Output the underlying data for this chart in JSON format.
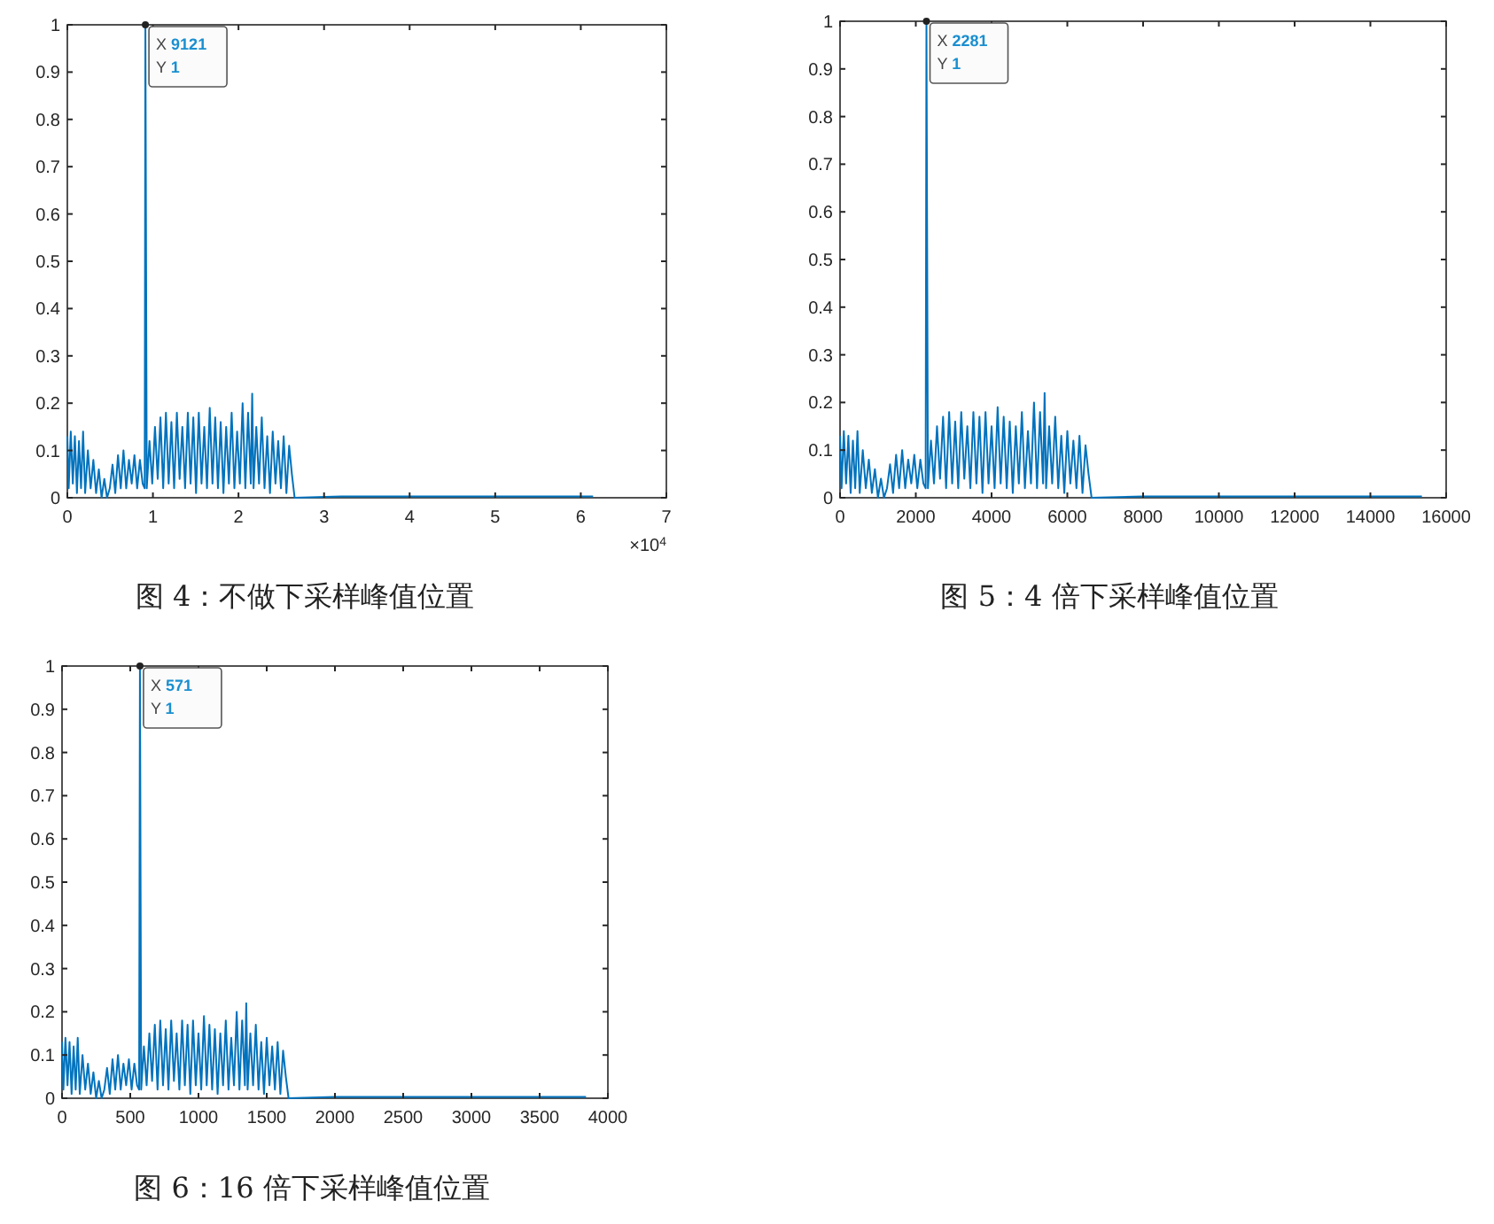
{
  "chart_data": [
    {
      "type": "line",
      "title": "图 4：不做下采样峰值位置",
      "xlim": [
        0,
        7
      ],
      "xticks": [
        0,
        1,
        2,
        3,
        4,
        5,
        6,
        7
      ],
      "ylim": [
        0,
        1
      ],
      "yticks": [
        0,
        0.1,
        0.2,
        0.3,
        0.4,
        0.5,
        0.6,
        0.7,
        0.8,
        0.9,
        1
      ],
      "grid": false,
      "annotations": [
        {
          "text": "X 9121\nY 1",
          "x": 0.9121,
          "y": 1
        },
        "×10$^{4}$"
      ],
      "series": [
        {
          "color": "#0072bd",
          "x": [
            0,
            0.016,
            0.04,
            0.064,
            0.088,
            0.112,
            0.136,
            0.16,
            0.184,
            0.208,
            0.24,
            0.272,
            0.304,
            0.336,
            0.368,
            0.4,
            0.432,
            0.464,
            0.496,
            0.528,
            0.56,
            0.592,
            0.624,
            0.656,
            0.688,
            0.72,
            0.752,
            0.784,
            0.816,
            0.848,
            0.88,
            0.904,
            0.9121,
            0.928,
            0.96,
            0.992,
            1.024,
            1.056,
            1.088,
            1.12,
            1.152,
            1.184,
            1.216,
            1.248,
            1.28,
            1.312,
            1.344,
            1.376,
            1.408,
            1.44,
            1.472,
            1.504,
            1.536,
            1.568,
            1.6,
            1.632,
            1.664,
            1.696,
            1.728,
            1.76,
            1.792,
            1.824,
            1.856,
            1.888,
            1.92,
            1.952,
            1.984,
            2.016,
            2.048,
            2.08,
            2.112,
            2.144,
            2.16,
            2.176,
            2.208,
            2.24,
            2.272,
            2.304,
            2.336,
            2.368,
            2.4,
            2.432,
            2.464,
            2.496,
            2.528,
            2.56,
            2.592,
            2.624,
            2.656,
            3.2,
            3.84,
            4.48,
            5.12,
            6.144
          ],
          "values": [
            0.13,
            0.02,
            0.14,
            0.03,
            0.13,
            0.01,
            0.12,
            0.02,
            0.14,
            0.01,
            0.1,
            0.02,
            0.08,
            0.01,
            0.06,
            0,
            0.04,
            0,
            0.02,
            0.07,
            0.01,
            0.09,
            0.02,
            0.1,
            0.02,
            0.08,
            0.03,
            0.09,
            0.02,
            0.08,
            0.03,
            0.02,
            1,
            0.02,
            0.12,
            0.03,
            0.15,
            0.04,
            0.17,
            0.02,
            0.18,
            0.03,
            0.16,
            0.02,
            0.18,
            0.04,
            0.15,
            0.02,
            0.18,
            0.03,
            0.17,
            0.01,
            0.18,
            0.03,
            0.15,
            0.02,
            0.19,
            0.03,
            0.17,
            0.02,
            0.16,
            0.01,
            0.15,
            0.03,
            0.18,
            0.02,
            0.14,
            0.03,
            0.2,
            0.02,
            0.18,
            0.03,
            0.22,
            0.02,
            0.15,
            0.03,
            0.17,
            0.02,
            0.13,
            0.01,
            0.14,
            0.03,
            0.12,
            0.02,
            0.13,
            0.01,
            0.11,
            0.05,
            0,
            0.003,
            0.003,
            0.003,
            0.003,
            0.003
          ]
        }
      ]
    },
    {
      "type": "line",
      "title": "图 5：4 倍下采样峰值位置",
      "xlim": [
        0,
        16000
      ],
      "xticks": [
        0,
        2000,
        4000,
        6000,
        8000,
        10000,
        12000,
        14000,
        16000
      ],
      "ylim": [
        0,
        1
      ],
      "yticks": [
        0,
        0.1,
        0.2,
        0.3,
        0.4,
        0.5,
        0.6,
        0.7,
        0.8,
        0.9,
        1
      ],
      "grid": false,
      "annotations": [
        {
          "text": "X 2281\nY 1",
          "x": 2281,
          "y": 1
        }
      ],
      "series": [
        {
          "color": "#0072bd",
          "x": [
            0,
            40,
            100,
            160,
            220,
            280,
            340,
            400,
            460,
            520,
            600,
            680,
            760,
            840,
            920,
            1000,
            1080,
            1160,
            1240,
            1320,
            1400,
            1480,
            1560,
            1640,
            1720,
            1800,
            1880,
            1960,
            2040,
            2120,
            2200,
            2260,
            2281,
            2320,
            2400,
            2480,
            2560,
            2640,
            2720,
            2800,
            2880,
            2960,
            3040,
            3120,
            3200,
            3280,
            3360,
            3440,
            3520,
            3600,
            3680,
            3760,
            3840,
            3920,
            4000,
            4080,
            4160,
            4240,
            4320,
            4400,
            4480,
            4560,
            4640,
            4720,
            4800,
            4880,
            4960,
            5040,
            5120,
            5200,
            5280,
            5360,
            5400,
            5440,
            5520,
            5600,
            5680,
            5760,
            5840,
            5920,
            6000,
            6080,
            6160,
            6240,
            6320,
            6400,
            6480,
            6560,
            6640,
            8000,
            9600,
            11200,
            12800,
            15360
          ],
          "values": [
            0.13,
            0.02,
            0.14,
            0.03,
            0.13,
            0.01,
            0.12,
            0.02,
            0.14,
            0.01,
            0.1,
            0.02,
            0.08,
            0.01,
            0.06,
            0,
            0.04,
            0,
            0.02,
            0.07,
            0.01,
            0.09,
            0.02,
            0.1,
            0.02,
            0.08,
            0.03,
            0.09,
            0.02,
            0.08,
            0.03,
            0.02,
            1,
            0.02,
            0.12,
            0.03,
            0.15,
            0.04,
            0.17,
            0.02,
            0.18,
            0.03,
            0.16,
            0.02,
            0.18,
            0.04,
            0.15,
            0.02,
            0.18,
            0.03,
            0.17,
            0.01,
            0.18,
            0.03,
            0.15,
            0.02,
            0.19,
            0.03,
            0.17,
            0.02,
            0.16,
            0.01,
            0.15,
            0.03,
            0.18,
            0.02,
            0.14,
            0.03,
            0.2,
            0.02,
            0.18,
            0.03,
            0.22,
            0.02,
            0.15,
            0.03,
            0.17,
            0.02,
            0.13,
            0.01,
            0.14,
            0.03,
            0.12,
            0.02,
            0.13,
            0.01,
            0.11,
            0.05,
            0,
            0.003,
            0.003,
            0.003,
            0.003,
            0.003
          ]
        }
      ]
    },
    {
      "type": "line",
      "title": "图 6：16 倍下采样峰值位置",
      "xlim": [
        0,
        4000
      ],
      "xticks": [
        0,
        500,
        1000,
        1500,
        2000,
        2500,
        3000,
        3500,
        4000
      ],
      "ylim": [
        0,
        1
      ],
      "yticks": [
        0,
        0.1,
        0.2,
        0.3,
        0.4,
        0.5,
        0.6,
        0.7,
        0.8,
        0.9,
        1
      ],
      "grid": false,
      "annotations": [
        {
          "text": "X 571\nY 1",
          "x": 571,
          "y": 1
        }
      ],
      "series": [
        {
          "color": "#0072bd",
          "x": [
            0,
            10,
            25,
            40,
            55,
            70,
            85,
            100,
            115,
            130,
            150,
            170,
            190,
            210,
            230,
            250,
            270,
            290,
            310,
            330,
            350,
            370,
            390,
            410,
            430,
            450,
            470,
            490,
            510,
            530,
            550,
            565,
            571,
            580,
            600,
            620,
            640,
            660,
            680,
            700,
            720,
            740,
            760,
            780,
            800,
            820,
            840,
            860,
            880,
            900,
            920,
            940,
            960,
            980,
            1000,
            1020,
            1040,
            1060,
            1080,
            1100,
            1120,
            1140,
            1160,
            1180,
            1200,
            1220,
            1240,
            1260,
            1280,
            1300,
            1320,
            1340,
            1350,
            1360,
            1380,
            1400,
            1420,
            1440,
            1460,
            1480,
            1500,
            1520,
            1540,
            1560,
            1580,
            1600,
            1620,
            1640,
            1660,
            2000,
            2400,
            2800,
            3200,
            3840
          ],
          "values": [
            0.13,
            0.02,
            0.14,
            0.03,
            0.13,
            0.01,
            0.12,
            0.02,
            0.14,
            0.01,
            0.1,
            0.02,
            0.08,
            0.01,
            0.06,
            0,
            0.04,
            0,
            0.02,
            0.07,
            0.01,
            0.09,
            0.02,
            0.1,
            0.02,
            0.08,
            0.03,
            0.09,
            0.02,
            0.08,
            0.03,
            0.02,
            1,
            0.02,
            0.12,
            0.03,
            0.15,
            0.04,
            0.17,
            0.02,
            0.18,
            0.03,
            0.16,
            0.02,
            0.18,
            0.04,
            0.15,
            0.02,
            0.18,
            0.03,
            0.17,
            0.01,
            0.18,
            0.03,
            0.15,
            0.02,
            0.19,
            0.03,
            0.17,
            0.02,
            0.16,
            0.01,
            0.15,
            0.03,
            0.18,
            0.02,
            0.14,
            0.03,
            0.2,
            0.02,
            0.18,
            0.03,
            0.22,
            0.02,
            0.15,
            0.03,
            0.17,
            0.02,
            0.13,
            0.01,
            0.14,
            0.03,
            0.12,
            0.02,
            0.13,
            0.01,
            0.11,
            0.05,
            0,
            0.003,
            0.003,
            0.003,
            0.003,
            0.003
          ]
        }
      ]
    }
  ]
}
